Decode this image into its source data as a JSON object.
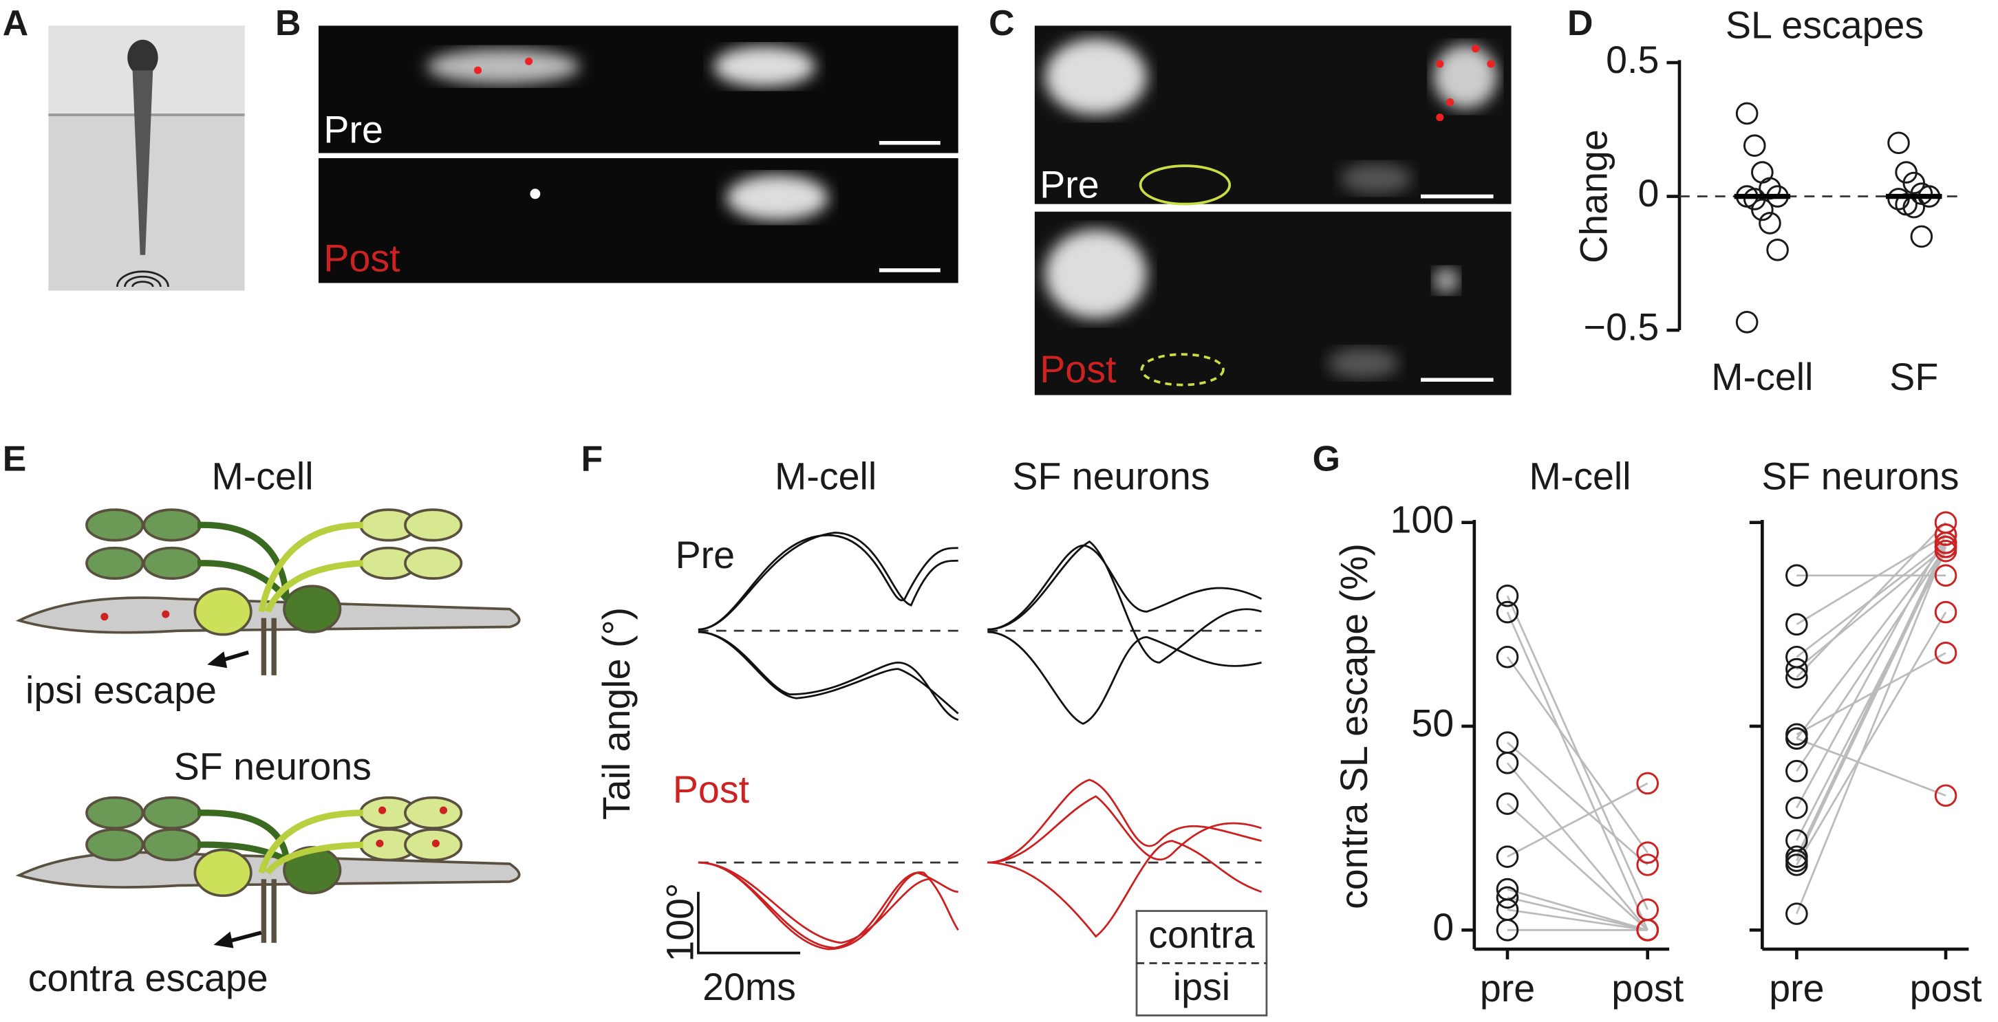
{
  "panels": {
    "a": "A",
    "b": "B",
    "c": "C",
    "d": "D",
    "e": "E",
    "f": "F",
    "g": "G"
  },
  "panel_b": {
    "pre": "Pre",
    "post": "Post"
  },
  "panel_c": {
    "pre": "Pre",
    "post": "Post"
  },
  "panel_e": {
    "top_title": "M-cell",
    "top_caption": "ipsi escape",
    "bottom_title": "SF neurons",
    "bottom_caption": "contra escape"
  },
  "panel_f": {
    "col1": "M-cell",
    "col2": "SF neurons",
    "y_label": "Tail angle (°)",
    "pre": "Pre",
    "post": "Post",
    "scale_y": "100°",
    "scale_x": "20ms",
    "legend_top": "contra",
    "legend_bottom": "ipsi"
  },
  "chart_data": [
    {
      "type": "scatter",
      "title": "SL escapes",
      "y_label": "Change",
      "categories": [
        "M-cell",
        "SF"
      ],
      "values": [
        [
          0.31,
          0.19,
          0.09,
          0.03,
          0.0,
          0.0,
          -0.01,
          -0.05,
          -0.1,
          -0.2,
          -0.47
        ],
        [
          0.2,
          0.09,
          0.05,
          0.01,
          0.0,
          -0.01,
          -0.03,
          -0.04,
          -0.15
        ]
      ],
      "medians": [
        0,
        0
      ],
      "reference_line": 0,
      "color": "#1a1a1a",
      "ylim": [
        -0.5,
        0.5
      ],
      "yticks": [
        {
          "value": -0.5,
          "label": "−0.5"
        },
        0,
        0.5
      ]
    },
    {
      "type": "paired",
      "title": "M-cell",
      "y_label": "contra SL escape (%)",
      "categories": [
        "pre",
        "post"
      ],
      "pairs": [
        [
          82,
          5
        ],
        [
          78,
          0
        ],
        [
          67,
          19
        ],
        [
          46,
          16
        ],
        [
          41,
          0
        ],
        [
          31,
          0
        ],
        [
          18,
          36
        ],
        [
          10,
          0
        ],
        [
          8,
          0
        ],
        [
          5,
          0
        ],
        [
          0,
          0
        ]
      ],
      "pre_color": "#1a1a1a",
      "post_color": "#cc2222",
      "line_color": "#bbbbbb",
      "ylim": [
        0,
        100
      ],
      "yticks": [
        0,
        50,
        100
      ],
      "tick_labels": true
    },
    {
      "type": "paired",
      "title": "SF neurons",
      "categories": [
        "pre",
        "post"
      ],
      "pairs": [
        [
          87,
          87
        ],
        [
          75,
          97
        ],
        [
          67,
          95
        ],
        [
          64,
          94
        ],
        [
          62,
          100
        ],
        [
          48,
          68
        ],
        [
          47,
          95
        ],
        [
          39,
          94
        ],
        [
          30,
          97
        ],
        [
          22,
          93
        ],
        [
          18,
          95
        ],
        [
          17,
          94
        ],
        [
          16,
          78
        ],
        [
          47,
          33
        ],
        [
          4,
          94
        ]
      ],
      "pre_color": "#1a1a1a",
      "post_color": "#cc2222",
      "line_color": "#bbbbbb",
      "ylim": [
        0,
        100
      ],
      "yticks": [
        0,
        50,
        100
      ],
      "tick_labels": false
    }
  ]
}
